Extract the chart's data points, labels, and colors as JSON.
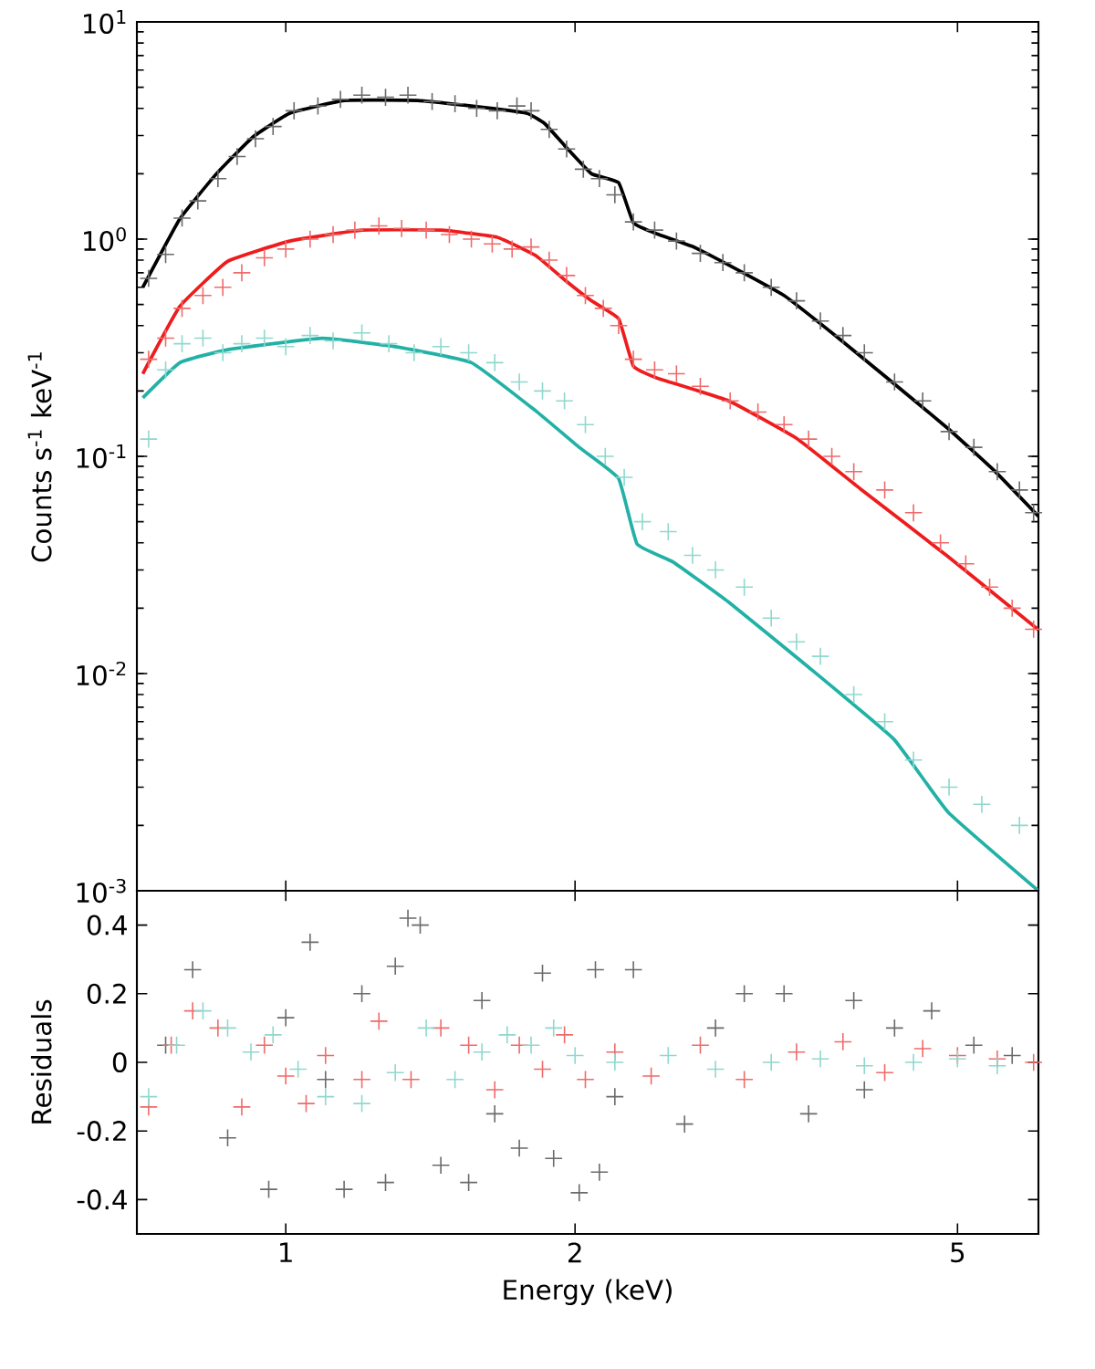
{
  "chart_data": [
    {
      "type": "scatter",
      "ylabel": "Counts s$^{-1}$ keV$^{-1}$",
      "log": "xy",
      "xlim": [
        0.7,
        6.07
      ],
      "xticks": [
        1,
        2,
        5
      ],
      "ylim": [
        0.001,
        10
      ],
      "yticks": [
        {
          "value": 0.001,
          "label": "10$^{-3}$"
        },
        {
          "value": 0.01,
          "label": "10$^{-2}$"
        },
        {
          "value": 0.1,
          "label": "10$^{-1}$"
        },
        {
          "value": 1,
          "label": "10$^{0}$"
        },
        {
          "value": 10,
          "label": "10$^{1}$"
        }
      ],
      "tick_labels": "y",
      "series": [
        {
          "marker": "cross",
          "color": "#6a6a6a",
          "x": [
            0.72,
            0.75,
            0.78,
            0.81,
            0.85,
            0.89,
            0.93,
            0.97,
            1.02,
            1.08,
            1.14,
            1.2,
            1.27,
            1.34,
            1.42,
            1.5,
            1.58,
            1.66,
            1.74,
            1.8,
            1.88,
            1.96,
            2.04,
            2.12,
            2.2,
            2.3,
            2.42,
            2.55,
            2.7,
            2.85,
            3.0,
            3.2,
            3.4,
            3.6,
            3.8,
            4.0,
            4.3,
            4.6,
            4.9,
            5.2,
            5.5,
            5.8,
            6.0
          ],
          "values": [
            0.66,
            0.85,
            1.25,
            1.5,
            1.9,
            2.4,
            2.9,
            3.3,
            3.9,
            4.1,
            4.4,
            4.6,
            4.5,
            4.6,
            4.3,
            4.2,
            4.0,
            3.9,
            4.1,
            3.9,
            3.2,
            2.6,
            2.1,
            1.9,
            1.6,
            1.2,
            1.1,
            0.98,
            0.86,
            0.78,
            0.7,
            0.6,
            0.52,
            0.42,
            0.36,
            0.3,
            0.22,
            0.18,
            0.13,
            0.11,
            0.085,
            0.07,
            0.055
          ]
        },
        {
          "marker": "cross",
          "color": "#f06a6a",
          "x": [
            0.72,
            0.75,
            0.78,
            0.82,
            0.86,
            0.9,
            0.95,
            1.0,
            1.06,
            1.12,
            1.18,
            1.25,
            1.32,
            1.4,
            1.48,
            1.56,
            1.64,
            1.72,
            1.8,
            1.88,
            1.96,
            2.05,
            2.14,
            2.22,
            2.3,
            2.42,
            2.55,
            2.7,
            2.9,
            3.1,
            3.3,
            3.5,
            3.7,
            3.9,
            4.2,
            4.5,
            4.8,
            5.1,
            5.4,
            5.7,
            6.0
          ],
          "values": [
            0.28,
            0.35,
            0.48,
            0.55,
            0.6,
            0.7,
            0.82,
            0.9,
            1.0,
            1.05,
            1.1,
            1.15,
            1.12,
            1.1,
            1.05,
            1.0,
            0.95,
            0.9,
            0.92,
            0.8,
            0.68,
            0.55,
            0.48,
            0.4,
            0.28,
            0.25,
            0.24,
            0.21,
            0.18,
            0.16,
            0.14,
            0.12,
            0.1,
            0.085,
            0.07,
            0.055,
            0.04,
            0.032,
            0.025,
            0.02,
            0.016
          ]
        },
        {
          "marker": "cross",
          "color": "#8fd8ce",
          "x": [
            0.72,
            0.75,
            0.78,
            0.82,
            0.86,
            0.9,
            0.95,
            1.0,
            1.06,
            1.12,
            1.2,
            1.28,
            1.36,
            1.45,
            1.55,
            1.65,
            1.75,
            1.85,
            1.95,
            2.05,
            2.15,
            2.25,
            2.35,
            2.5,
            2.65,
            2.8,
            3.0,
            3.2,
            3.4,
            3.6,
            3.9,
            4.2,
            4.5,
            4.9,
            5.3,
            5.8
          ],
          "values": [
            0.12,
            0.25,
            0.33,
            0.35,
            0.3,
            0.33,
            0.35,
            0.32,
            0.36,
            0.34,
            0.37,
            0.33,
            0.3,
            0.32,
            0.3,
            0.27,
            0.22,
            0.2,
            0.18,
            0.14,
            0.1,
            0.08,
            0.05,
            0.045,
            0.035,
            0.03,
            0.025,
            0.018,
            0.014,
            0.012,
            0.008,
            0.006,
            0.004,
            0.003,
            0.0025,
            0.002
          ]
        },
        {
          "type": "line",
          "color": "#000000",
          "x": [
            0.71,
            0.776,
            0.847,
            0.924,
            1.01,
            1.15,
            1.37,
            1.56,
            1.78,
            1.86,
            1.95,
            2.08,
            2.22,
            2.3,
            2.43,
            2.65,
            2.89,
            3.3,
            3.76,
            4.29,
            4.89,
            5.46,
            6.07
          ],
          "values": [
            0.6,
            1.24,
            2.0,
            2.95,
            3.8,
            4.35,
            4.35,
            4.1,
            3.8,
            3.4,
            2.7,
            2.0,
            1.82,
            1.19,
            1.06,
            0.925,
            0.76,
            0.55,
            0.35,
            0.217,
            0.134,
            0.086,
            0.053
          ]
        },
        {
          "type": "line",
          "color": "#ee1c1c",
          "x": [
            0.71,
            0.776,
            0.87,
            1.01,
            1.2,
            1.45,
            1.66,
            1.82,
            1.95,
            2.08,
            2.22,
            2.3,
            2.43,
            2.89,
            3.4,
            3.96,
            4.89,
            6.07
          ],
          "values": [
            0.24,
            0.49,
            0.79,
            0.98,
            1.1,
            1.1,
            1.02,
            0.84,
            0.65,
            0.52,
            0.43,
            0.26,
            0.23,
            0.18,
            0.121,
            0.071,
            0.0345,
            0.0159
          ]
        },
        {
          "type": "line",
          "color": "#23b1a6",
          "x": [
            0.71,
            0.776,
            0.87,
            1.09,
            1.3,
            1.56,
            1.82,
            2.02,
            2.22,
            2.32,
            2.53,
            2.89,
            3.49,
            4.29,
            4.89,
            6.07
          ],
          "values": [
            0.186,
            0.27,
            0.31,
            0.35,
            0.32,
            0.27,
            0.162,
            0.11,
            0.079,
            0.0395,
            0.0326,
            0.0213,
            0.0108,
            0.005,
            0.0023,
            0.001
          ]
        }
      ]
    },
    {
      "type": "scatter",
      "xlabel": "Energy (keV)",
      "ylabel": "Residuals",
      "log": "x",
      "xlim": [
        0.7,
        6.07
      ],
      "xticks": [
        1,
        2,
        5
      ],
      "ylim": [
        -0.5,
        0.5
      ],
      "yticks": [
        -0.4,
        -0.2,
        0,
        0.2,
        0.4
      ],
      "series": [
        {
          "marker": "cross",
          "color": "#6a6a6a",
          "x": [
            0.75,
            0.8,
            0.87,
            0.96,
            1.0,
            1.06,
            1.1,
            1.15,
            1.2,
            1.27,
            1.3,
            1.34,
            1.38,
            1.45,
            1.55,
            1.6,
            1.65,
            1.75,
            1.85,
            1.9,
            2.02,
            2.1,
            2.12,
            2.2,
            2.3,
            2.6,
            2.8,
            3.0,
            3.3,
            3.5,
            3.9,
            4.0,
            4.3,
            4.7,
            5.2,
            5.7
          ],
          "values": [
            0.05,
            0.27,
            -0.22,
            -0.37,
            0.13,
            0.35,
            -0.05,
            -0.37,
            0.2,
            -0.35,
            0.28,
            0.42,
            0.4,
            -0.3,
            -0.35,
            0.18,
            -0.15,
            -0.25,
            0.26,
            -0.28,
            -0.38,
            0.27,
            -0.32,
            -0.1,
            0.27,
            -0.18,
            0.1,
            0.2,
            0.2,
            -0.15,
            0.18,
            -0.08,
            0.1,
            0.15,
            0.05,
            0.02
          ]
        },
        {
          "marker": "cross",
          "color": "#f06a6a",
          "x": [
            0.72,
            0.76,
            0.8,
            0.85,
            0.9,
            0.95,
            1.0,
            1.05,
            1.1,
            1.2,
            1.25,
            1.35,
            1.45,
            1.55,
            1.65,
            1.75,
            1.85,
            1.95,
            2.05,
            2.2,
            2.4,
            2.7,
            3.0,
            3.4,
            3.8,
            4.2,
            4.6,
            5.0,
            5.5,
            6.0
          ],
          "values": [
            -0.13,
            0.05,
            0.15,
            0.1,
            -0.13,
            0.05,
            -0.04,
            -0.12,
            0.02,
            -0.05,
            0.12,
            -0.05,
            0.1,
            0.05,
            -0.08,
            0.05,
            -0.02,
            0.08,
            -0.05,
            0.03,
            -0.04,
            0.05,
            -0.05,
            0.03,
            0.06,
            -0.03,
            0.04,
            0.02,
            0.01,
            0.0
          ]
        },
        {
          "marker": "cross",
          "color": "#8fd8ce",
          "x": [
            0.72,
            0.77,
            0.82,
            0.87,
            0.92,
            0.97,
            1.03,
            1.1,
            1.2,
            1.3,
            1.4,
            1.5,
            1.6,
            1.7,
            1.8,
            1.9,
            2.0,
            2.2,
            2.5,
            2.8,
            3.2,
            3.6,
            4.0,
            4.5,
            5.0,
            5.5
          ],
          "values": [
            -0.1,
            0.05,
            0.15,
            0.1,
            0.03,
            0.08,
            -0.02,
            -0.1,
            -0.12,
            -0.03,
            0.1,
            -0.05,
            0.03,
            0.08,
            0.05,
            0.1,
            0.02,
            0.0,
            0.02,
            -0.02,
            0.0,
            0.01,
            -0.01,
            0.0,
            0.01,
            -0.01
          ]
        }
      ]
    }
  ]
}
